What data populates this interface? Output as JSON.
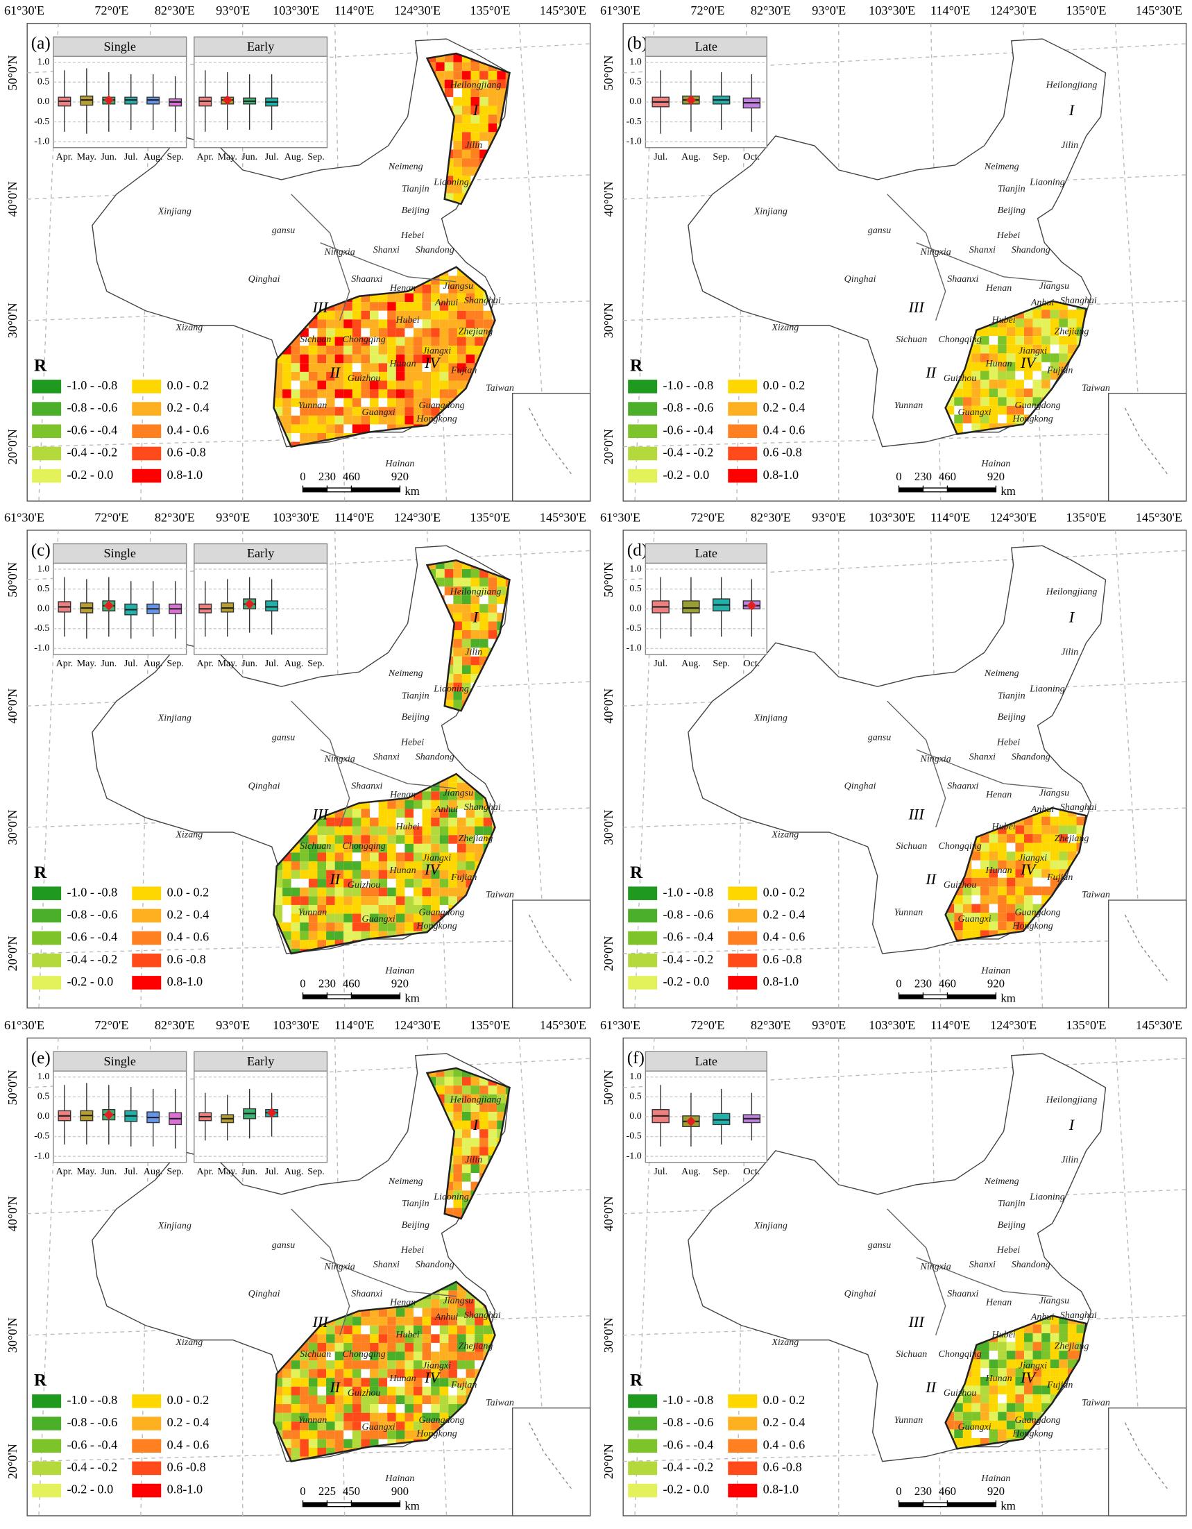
{
  "lon_labels": [
    "61°30'E",
    "72°0'E",
    "82°30'E",
    "93°0'E",
    "103°30'E",
    "114°0'E",
    "124°30'E",
    "135°0'E",
    "145°30'E"
  ],
  "lat_labels": [
    "50°0'N",
    "40°0'N",
    "30°0'N",
    "20°0'N"
  ],
  "legend": {
    "title": "R",
    "classes": [
      {
        "label": "-1.0 - -0.8",
        "color": "#1f9a1f"
      },
      {
        "label": "-0.8 - -0.6",
        "color": "#4caf2a"
      },
      {
        "label": "-0.6 - -0.4",
        "color": "#7cc42a"
      },
      {
        "label": "-0.4 - -0.2",
        "color": "#b4d93c"
      },
      {
        "label": "-0.2 - 0.0",
        "color": "#e3f25a"
      },
      {
        "label": "0.0 - 0.2",
        "color": "#ffd700"
      },
      {
        "label": "0.2 - 0.4",
        "color": "#ffb020"
      },
      {
        "label": "0.4 - 0.6",
        "color": "#ff8020"
      },
      {
        "label": "0.6 -0.8",
        "color": "#ff4a1a"
      },
      {
        "label": "0.8-1.0",
        "color": "#ff0000"
      }
    ]
  },
  "provinces": [
    "Heilongjiang",
    "Jilin",
    "Liaoning",
    "Neimeng",
    "Tianjin",
    "Beijing",
    "Hebei",
    "Shanxi",
    "Shandong",
    "Ningxia",
    "gansu",
    "Xinjiang",
    "Qinghai",
    "Shaanxi",
    "Henan",
    "Jiangsu",
    "Anhui",
    "Shanghai",
    "Xizang",
    "Sichuan",
    "Chongqing",
    "Hubei",
    "Zhejiang",
    "Hunan",
    "Jiangxi",
    "Guizhou",
    "Fujian",
    "Yunnan",
    "Guangxi",
    "Guangdong",
    "Hongkong",
    "Taiwan",
    "Hainan"
  ],
  "regions": [
    "I",
    "II",
    "III",
    "IV"
  ],
  "inset_ylim": [
    -1.15,
    1.15
  ],
  "inset_yticks": [
    {
      "value": 1,
      "label": "1.0"
    },
    {
      "value": 0.5,
      "label": "0.5"
    },
    {
      "value": 0,
      "label": "0.0"
    },
    {
      "value": -0.5,
      "label": "-0.5"
    },
    {
      "value": -1,
      "label": "-1.0"
    }
  ],
  "panels": [
    {
      "label": "(a)",
      "regions_shown": [
        "I",
        "II",
        "III",
        "IV"
      ],
      "scale": [
        0,
        230,
        460,
        920
      ],
      "scale_unit": "km",
      "groups": [
        {
          "name": "Single",
          "categories": [
            "Apr.",
            "May.",
            "Jun.",
            "Jul.",
            "Aug.",
            "Sep."
          ],
          "colors": [
            "#f08080",
            "#b8a030",
            "#3cb371",
            "#20b2aa",
            "#6495ed",
            "#da70d6"
          ],
          "boxes": [
            [
              -0.75,
              -0.1,
              0.02,
              0.12,
              0.8
            ],
            [
              -0.8,
              -0.08,
              0.05,
              0.15,
              0.85
            ],
            [
              -0.75,
              -0.05,
              0.05,
              0.12,
              0.75
            ],
            [
              -0.7,
              -0.05,
              0.05,
              0.12,
              0.7
            ],
            [
              -0.7,
              -0.05,
              0.05,
              0.12,
              0.7
            ],
            [
              -0.75,
              -0.1,
              0,
              0.08,
              0.65
            ]
          ],
          "marked": [
            2
          ]
        },
        {
          "name": "Early",
          "categories": [
            "Apr.",
            "May.",
            "Jun.",
            "Jul.",
            "Aug.",
            "Sep."
          ],
          "colors": [
            "#f08080",
            "#b8a030",
            "#3cb371",
            "#20b2aa",
            "#6495ed",
            "#da70d6"
          ],
          "boxes": [
            [
              -0.75,
              -0.1,
              0.02,
              0.12,
              0.8
            ],
            [
              -0.7,
              -0.05,
              0.05,
              0.12,
              0.75
            ],
            [
              -0.7,
              -0.05,
              0.02,
              0.1,
              0.7
            ],
            [
              -0.7,
              -0.1,
              0,
              0.1,
              0.7
            ],
            null,
            null
          ],
          "marked": [
            1
          ]
        }
      ]
    },
    {
      "label": "(b)",
      "regions_shown": [
        "IV"
      ],
      "scale": [
        0,
        230,
        460,
        920
      ],
      "scale_unit": "km",
      "groups": [
        {
          "name": "Late",
          "categories": [
            "Jul.",
            "Aug.",
            "Sep.",
            "Oct."
          ],
          "colors": [
            "#f08080",
            "#9aa030",
            "#20b2aa",
            "#c080e0"
          ],
          "boxes": [
            [
              -0.8,
              -0.12,
              0,
              0.12,
              0.8
            ],
            [
              -0.75,
              -0.05,
              0.05,
              0.15,
              0.8
            ],
            [
              -0.7,
              -0.05,
              0.05,
              0.15,
              0.75
            ],
            [
              -0.75,
              -0.15,
              -0.02,
              0.1,
              0.7
            ]
          ],
          "marked": [
            1
          ]
        }
      ]
    },
    {
      "label": "(c)",
      "regions_shown": [
        "I",
        "II",
        "III",
        "IV"
      ],
      "scale": [
        0,
        230,
        460,
        920
      ],
      "scale_unit": "km",
      "groups": [
        {
          "name": "Single",
          "categories": [
            "Apr.",
            "May.",
            "Jun.",
            "Jul.",
            "Aug.",
            "Sep."
          ],
          "colors": [
            "#f08080",
            "#b8a030",
            "#3cb371",
            "#20b2aa",
            "#6495ed",
            "#da70d6"
          ],
          "boxes": [
            [
              -0.7,
              -0.08,
              0.05,
              0.18,
              0.8
            ],
            [
              -0.75,
              -0.1,
              0.02,
              0.15,
              0.75
            ],
            [
              -0.7,
              -0.05,
              0.08,
              0.2,
              0.8
            ],
            [
              -0.75,
              -0.15,
              -0.02,
              0.12,
              0.7
            ],
            [
              -0.7,
              -0.12,
              0,
              0.12,
              0.7
            ],
            [
              -0.75,
              -0.12,
              0,
              0.12,
              0.7
            ]
          ],
          "marked": [
            2
          ]
        },
        {
          "name": "Early",
          "categories": [
            "Apr.",
            "May.",
            "Jun.",
            "Jul.",
            "Aug.",
            "Sep."
          ],
          "colors": [
            "#f08080",
            "#b8a030",
            "#3cb371",
            "#20b2aa",
            "#6495ed",
            "#da70d6"
          ],
          "boxes": [
            [
              -0.7,
              -0.1,
              0,
              0.12,
              0.7
            ],
            [
              -0.7,
              -0.08,
              0.02,
              0.15,
              0.75
            ],
            [
              -0.6,
              0,
              0.12,
              0.25,
              0.8
            ],
            [
              -0.65,
              -0.05,
              0.05,
              0.2,
              0.75
            ],
            null,
            null
          ],
          "marked": [
            2
          ]
        }
      ]
    },
    {
      "label": "(d)",
      "regions_shown": [
        "IV"
      ],
      "scale": [
        0,
        230,
        460,
        920
      ],
      "scale_unit": "km",
      "groups": [
        {
          "name": "Late",
          "categories": [
            "Jul.",
            "Aug.",
            "Sep.",
            "Oct."
          ],
          "colors": [
            "#f08080",
            "#9aa030",
            "#20b2aa",
            "#c080e0"
          ],
          "boxes": [
            [
              -0.75,
              -0.1,
              0.05,
              0.2,
              0.8
            ],
            [
              -0.7,
              -0.1,
              0.02,
              0.2,
              0.8
            ],
            [
              -0.7,
              -0.05,
              0.1,
              0.25,
              0.8
            ],
            [
              -0.7,
              0,
              0.08,
              0.2,
              0.75
            ]
          ],
          "marked": [
            3
          ]
        }
      ]
    },
    {
      "label": "(e)",
      "regions_shown": [
        "I",
        "II",
        "III",
        "IV"
      ],
      "scale": [
        0,
        225,
        450,
        900
      ],
      "scale_unit": "km",
      "groups": [
        {
          "name": "Single",
          "categories": [
            "Apr.",
            "May.",
            "Jun.",
            "Jul.",
            "Aug.",
            "Sep."
          ],
          "colors": [
            "#f08080",
            "#b8a030",
            "#3cb371",
            "#20b2aa",
            "#6495ed",
            "#da70d6"
          ],
          "boxes": [
            [
              -0.7,
              -0.1,
              0.02,
              0.15,
              0.8
            ],
            [
              -0.7,
              -0.1,
              0.03,
              0.15,
              0.85
            ],
            [
              -0.7,
              -0.08,
              0.05,
              0.18,
              0.8
            ],
            [
              -0.75,
              -0.12,
              0.02,
              0.15,
              0.75
            ],
            [
              -0.75,
              -0.15,
              -0.02,
              0.12,
              0.7
            ],
            [
              -0.8,
              -0.2,
              -0.05,
              0.1,
              0.7
            ]
          ],
          "marked": [
            2
          ]
        },
        {
          "name": "Early",
          "categories": [
            "Apr.",
            "May.",
            "Jun.",
            "Jul.",
            "Aug.",
            "Sep."
          ],
          "colors": [
            "#f08080",
            "#b8a030",
            "#3cb371",
            "#20b2aa",
            "#6495ed",
            "#da70d6"
          ],
          "boxes": [
            [
              -0.6,
              -0.1,
              0,
              0.1,
              0.6
            ],
            [
              -0.6,
              -0.15,
              -0.05,
              0.05,
              0.55
            ],
            [
              -0.55,
              -0.05,
              0.08,
              0.2,
              0.7
            ],
            [
              -0.5,
              0,
              0.1,
              0.18,
              0.6
            ],
            null,
            null
          ],
          "marked": [
            3
          ]
        }
      ]
    },
    {
      "label": "(f)",
      "regions_shown": [
        "IV"
      ],
      "scale": [
        0,
        230,
        460,
        920
      ],
      "scale_unit": "km",
      "groups": [
        {
          "name": "Late",
          "categories": [
            "Jul.",
            "Aug.",
            "Sep.",
            "Oct."
          ],
          "colors": [
            "#f08080",
            "#9aa030",
            "#20b2aa",
            "#c080e0"
          ],
          "boxes": [
            [
              -0.75,
              -0.15,
              0.02,
              0.18,
              0.8
            ],
            [
              -0.75,
              -0.25,
              -0.12,
              0.02,
              0.6
            ],
            [
              -0.7,
              -0.2,
              -0.08,
              0.08,
              0.7
            ],
            [
              -0.6,
              -0.15,
              -0.05,
              0.05,
              0.6
            ]
          ],
          "marked": [
            1
          ]
        }
      ]
    }
  ]
}
